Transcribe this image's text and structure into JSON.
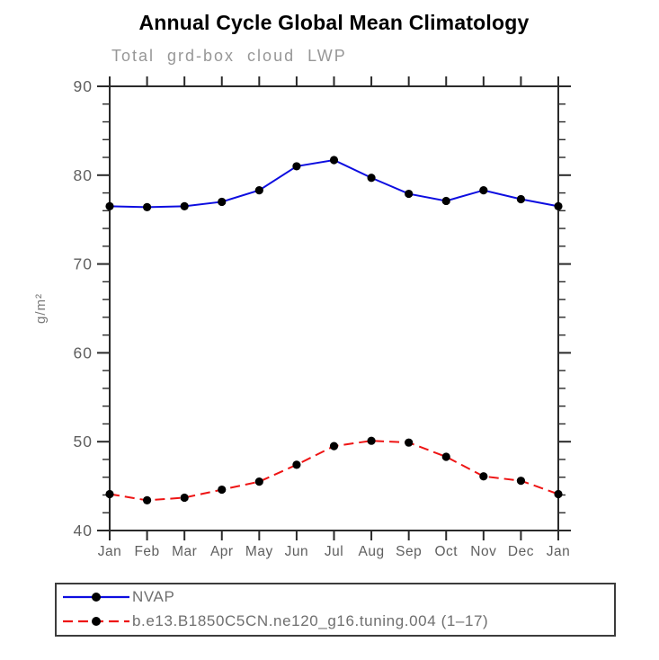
{
  "chart_data": {
    "type": "line",
    "title": "Annual Cycle Global Mean Climatology",
    "subtitle": "Total grd-box cloud LWP",
    "ylabel": "g/m²",
    "xlabel": "",
    "categories": [
      "Jan",
      "Feb",
      "Mar",
      "Apr",
      "May",
      "Jun",
      "Jul",
      "Aug",
      "Sep",
      "Oct",
      "Nov",
      "Dec",
      "Jan"
    ],
    "ylim": [
      40,
      90
    ],
    "yticks_major": [
      40,
      50,
      60,
      70,
      80,
      90
    ],
    "ytick_minor_step": 2,
    "grid": false,
    "legend_position": "bottom-left",
    "series": [
      {
        "name": "NVAP",
        "color": "#0d0de0",
        "line_style": "solid",
        "marker": "filled-circle",
        "marker_color": "#000000",
        "values": [
          76.5,
          76.4,
          76.5,
          77.0,
          78.3,
          81.0,
          81.7,
          79.7,
          77.9,
          77.1,
          78.3,
          77.3,
          76.5
        ]
      },
      {
        "name": "b.e13.B1850C5CN.ne120_g16.tuning.004 (1–17)",
        "color": "#ee1414",
        "line_style": "dashed",
        "marker": "filled-circle",
        "marker_color": "#000000",
        "values": [
          44.1,
          43.4,
          43.7,
          44.6,
          45.5,
          47.4,
          49.5,
          50.1,
          49.9,
          48.3,
          46.1,
          45.6,
          44.1
        ]
      }
    ]
  },
  "colors": {
    "frame": "#2a2a2a",
    "tick_label": "#5f5f5f",
    "axis_label": "#7a7a7a",
    "subtitle": "#979797",
    "legend_text": "#6f6f6f",
    "legend_border": "#3c3c3c",
    "background": "#ffffff"
  }
}
